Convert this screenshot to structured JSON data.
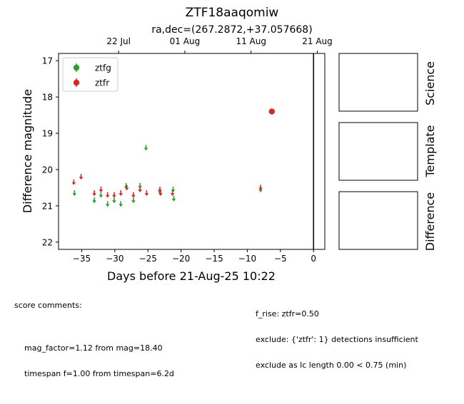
{
  "title": "ZTF18aaqomiw",
  "subtitle": "ra,dec=(267.2872,+37.057668)",
  "chart_data": {
    "type": "scatter",
    "xlabel": "Days before 21-Aug-25 10:22",
    "ylabel": "Difference magnitude",
    "xlim": [
      -38.5,
      1.7
    ],
    "ylim": [
      22.2,
      16.8
    ],
    "y_inverted": true,
    "x_ticks": [
      -35,
      -30,
      -25,
      -20,
      -15,
      -10,
      -5,
      0
    ],
    "x_tick_labels": [
      "−35",
      "−30",
      "−25",
      "−20",
      "−15",
      "−10",
      "−5",
      "0"
    ],
    "y_ticks": [
      17,
      18,
      19,
      20,
      21,
      22
    ],
    "y_tick_labels": [
      "17",
      "18",
      "19",
      "20",
      "21",
      "22"
    ],
    "top_axis_ticks": [
      -29.43,
      -19.43,
      -9.43,
      0.57
    ],
    "top_axis_labels": [
      "22 Jul",
      "01 Aug",
      "11 Aug",
      "21 Aug"
    ],
    "reference_line_x": 0,
    "legend": {
      "position": "top-left",
      "entries": [
        "ztfg",
        "ztfr"
      ]
    },
    "grid": false,
    "series": [
      {
        "name": "ztfg",
        "color": "#2ca02c",
        "upper_limits": [
          [
            -36.1,
            20.65
          ],
          [
            -33.1,
            20.85
          ],
          [
            -32.1,
            20.7
          ],
          [
            -31.1,
            20.95
          ],
          [
            -30.1,
            20.85
          ],
          [
            -29.1,
            20.95
          ],
          [
            -28.3,
            20.45
          ],
          [
            -27.2,
            20.85
          ],
          [
            -26.2,
            20.45
          ],
          [
            -25.3,
            19.4
          ],
          [
            -23.2,
            20.6
          ],
          [
            -21.2,
            20.55
          ],
          [
            -21.1,
            20.8
          ],
          [
            -8.0,
            20.55
          ]
        ],
        "detections": []
      },
      {
        "name": "ztfr",
        "color": "#d62728",
        "upper_limits": [
          [
            -36.2,
            20.35
          ],
          [
            -35.1,
            20.2
          ],
          [
            -33.1,
            20.65
          ],
          [
            -32.1,
            20.55
          ],
          [
            -31.1,
            20.7
          ],
          [
            -30.1,
            20.7
          ],
          [
            -29.1,
            20.65
          ],
          [
            -28.2,
            20.5
          ],
          [
            -27.2,
            20.7
          ],
          [
            -26.2,
            20.55
          ],
          [
            -25.2,
            20.65
          ],
          [
            -23.2,
            20.55
          ],
          [
            -23.1,
            20.65
          ],
          [
            -21.3,
            20.65
          ],
          [
            -8.0,
            20.5
          ]
        ],
        "detections": [
          [
            -6.3,
            18.4,
            0.05
          ]
        ]
      }
    ]
  },
  "panels": [
    "Science",
    "Template",
    "Difference"
  ],
  "comments": {
    "header": "score comments:",
    "left_lines": [
      "mag_factor=1.12 from mag=18.40",
      "timespan f=1.00 from timespan=6.2d"
    ],
    "right_lines": [
      "f_rise: ztfr=0.50",
      "exclude: {'ztfr': 1} detections insufficient",
      "exclude as lc length 0.00 < 0.75 (min)"
    ]
  }
}
